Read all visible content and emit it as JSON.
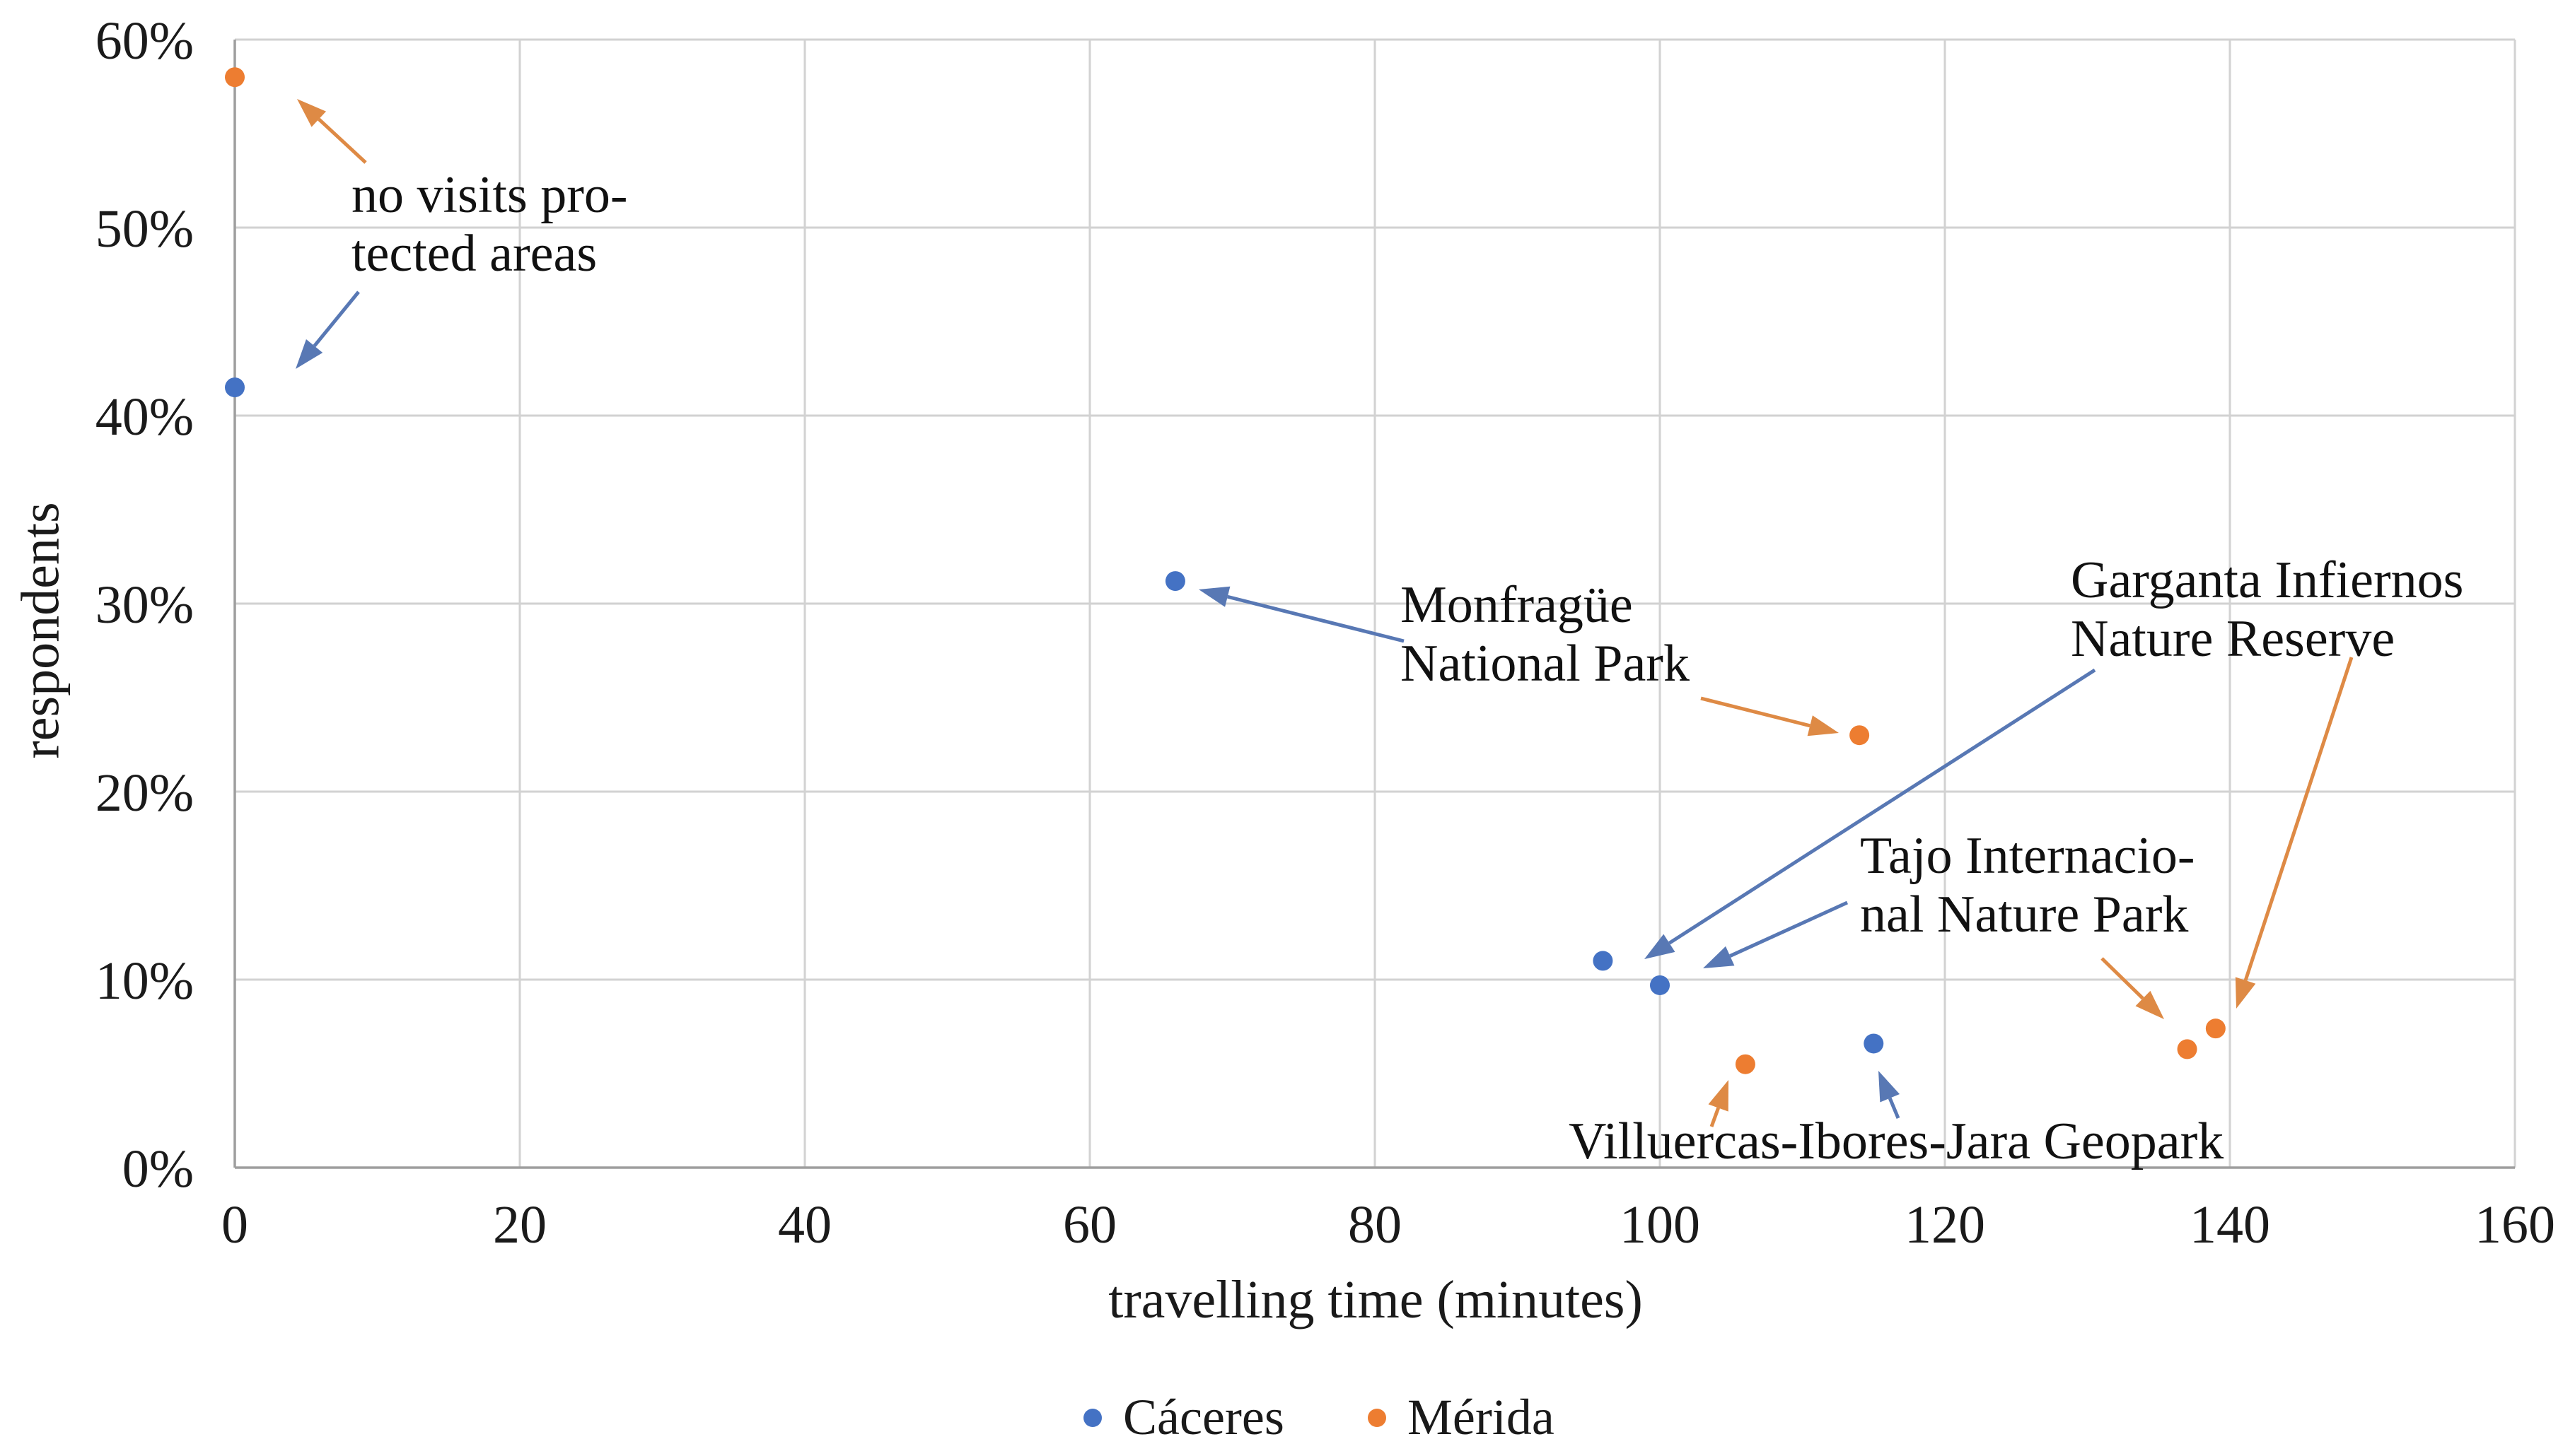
{
  "chart_data": {
    "type": "scatter",
    "title": "",
    "xlabel": "travelling time (minutes)",
    "ylabel": "respondents",
    "xlim": [
      0,
      160
    ],
    "ylim_percent": [
      0,
      60
    ],
    "grid": true,
    "legend_position": "bottom-center",
    "xtick_values": [
      0,
      20,
      40,
      60,
      80,
      100,
      120,
      140,
      160
    ],
    "xtick_labels": [
      "0",
      "20",
      "40",
      "60",
      "80",
      "100",
      "120",
      "140",
      "160"
    ],
    "ytick_values": [
      0,
      10,
      20,
      30,
      40,
      50,
      60
    ],
    "ytick_labels": [
      "0%",
      "10%",
      "20%",
      "30%",
      "40%",
      "50%",
      "60%"
    ],
    "series": [
      {
        "name": "Cáceres",
        "color": "#4472C4",
        "marker": "circle",
        "points": [
          {
            "x": 0,
            "y_pct": 41.5,
            "place": "no visits protected areas"
          },
          {
            "x": 66,
            "y_pct": 31.2,
            "place": "Monfragüe National Park"
          },
          {
            "x": 96,
            "y_pct": 11.0,
            "place": "Garganta Infiernos Nature Reserve"
          },
          {
            "x": 100,
            "y_pct": 9.7,
            "place": "Tajo Internacional Nature Park"
          },
          {
            "x": 115,
            "y_pct": 6.6,
            "place": "Villuercas-Ibores-Jara Geopark"
          }
        ]
      },
      {
        "name": "Mérida",
        "color": "#ED7D31",
        "marker": "circle",
        "points": [
          {
            "x": 0,
            "y_pct": 58.0,
            "place": "no visits protected areas"
          },
          {
            "x": 114,
            "y_pct": 23.0,
            "place": "Monfragüe National Park"
          },
          {
            "x": 139,
            "y_pct": 7.4,
            "place": "Garganta Infiernos Nature Reserve"
          },
          {
            "x": 137,
            "y_pct": 6.3,
            "place": "Tajo Internacional Nature Park"
          },
          {
            "x": 106,
            "y_pct": 5.5,
            "place": "Villuercas-Ibores-Jara Geopark"
          }
        ]
      }
    ],
    "annotations": [
      {
        "id": "no-visits",
        "lines": [
          "no visits pro-",
          "tected areas"
        ],
        "x": 497,
        "y": 235
      },
      {
        "id": "monfrague",
        "lines": [
          "Monfragüe",
          "National Park"
        ],
        "x": 1980,
        "y": 815
      },
      {
        "id": "garganta",
        "lines": [
          "Garganta Infiernos",
          "Nature Reserve"
        ],
        "x": 2928,
        "y": 780
      },
      {
        "id": "tajo",
        "lines": [
          "Tajo Internacio-",
          "nal Nature Park"
        ],
        "x": 2630,
        "y": 1170
      },
      {
        "id": "villuercas",
        "lines": [
          "Villuercas-Ibores-Jara Geopark"
        ],
        "x": 2218,
        "y": 1574
      }
    ],
    "arrows": [
      {
        "id": "no-visits-merida",
        "color_key": "orange",
        "from": [
          517,
          230
        ],
        "to": [
          420,
          140
        ]
      },
      {
        "id": "no-visits-caceres",
        "color_key": "blue",
        "from": [
          507,
          413
        ],
        "to": [
          418,
          522
        ]
      },
      {
        "id": "monfrague-caceres",
        "color_key": "blue",
        "from": [
          1985,
          907
        ],
        "to": [
          1695,
          834
        ]
      },
      {
        "id": "monfrague-merida",
        "color_key": "orange",
        "from": [
          2405,
          988
        ],
        "to": [
          2600,
          1037
        ]
      },
      {
        "id": "garganta-caceres",
        "color_key": "blue",
        "from": [
          2962,
          948
        ],
        "to": [
          2325,
          1357
        ]
      },
      {
        "id": "garganta-merida",
        "color_key": "orange",
        "from": [
          3325,
          930
        ],
        "to": [
          3162,
          1427
        ]
      },
      {
        "id": "tajo-caceres",
        "color_key": "blue",
        "from": [
          2612,
          1277
        ],
        "to": [
          2408,
          1370
        ]
      },
      {
        "id": "tajo-merida",
        "color_key": "orange",
        "from": [
          2972,
          1356
        ],
        "to": [
          3060,
          1442
        ]
      },
      {
        "id": "villuercas-merida",
        "color_key": "orange",
        "from": [
          2420,
          1594
        ],
        "to": [
          2444,
          1528
        ]
      },
      {
        "id": "villuercas-caceres",
        "color_key": "blue",
        "from": [
          2684,
          1582
        ],
        "to": [
          2656,
          1515
        ]
      }
    ],
    "colors": {
      "caceres_series": "#4472C4",
      "merida_series": "#ED7D31",
      "blue_arrow": "#5878B4",
      "orange_arrow": "#DE8A45",
      "gridline": "#d2d2d2",
      "axis_line": "#9e9e9e",
      "text": "#1a1a1a",
      "background": "#ffffff"
    }
  }
}
